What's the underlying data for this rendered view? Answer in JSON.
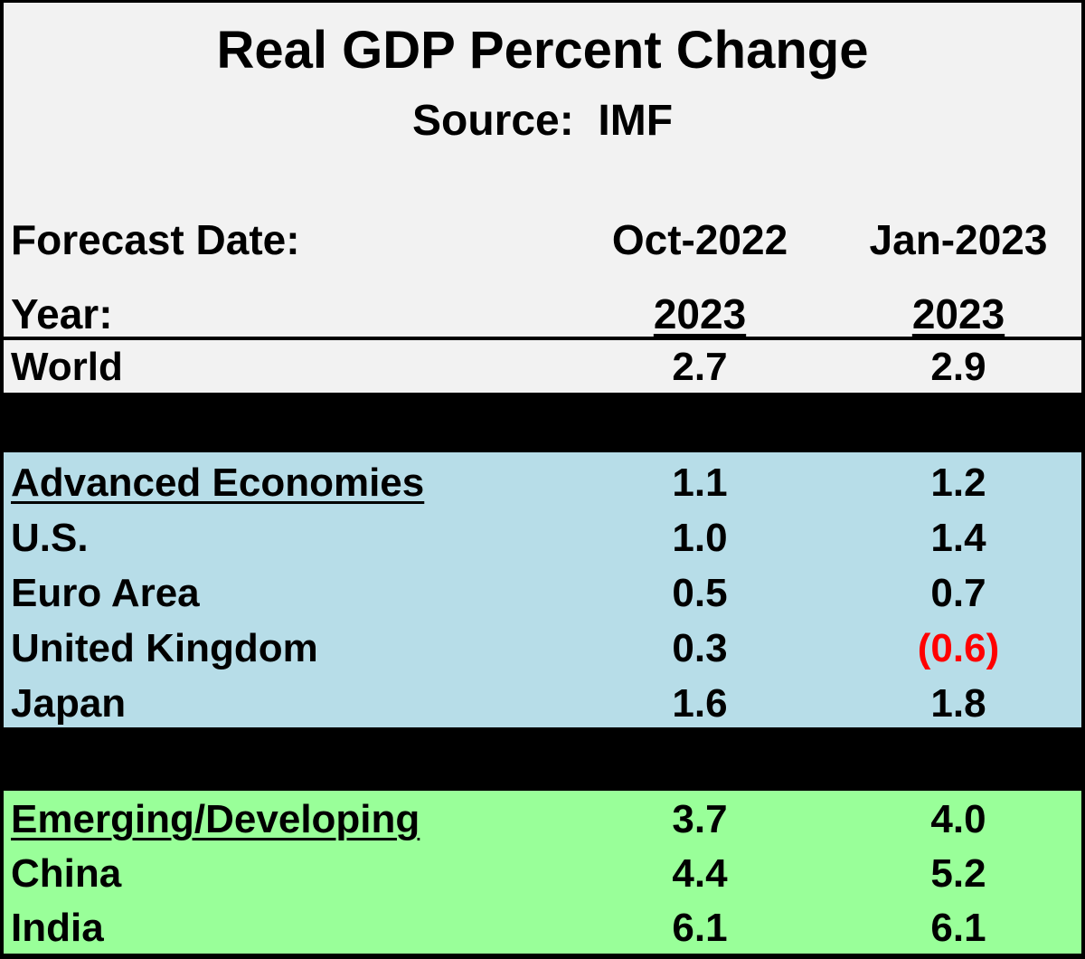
{
  "chart_data": {
    "type": "table",
    "title": "Real GDP Percent Change",
    "subtitle": "Source:  IMF",
    "header": {
      "forecast_label": "Forecast Date:",
      "year_label": "Year:",
      "forecast_dates": [
        "Oct-2022",
        "Jan-2023"
      ],
      "years": [
        "2023",
        "2023"
      ]
    },
    "groups": [
      {
        "rows": [
          {
            "label": "World",
            "values": [
              "2.7",
              "2.9"
            ],
            "numeric": [
              2.7,
              2.9
            ]
          }
        ]
      },
      {
        "rows": [
          {
            "label": "Advanced Economies",
            "values": [
              "1.1",
              "1.2"
            ],
            "numeric": [
              1.1,
              1.2
            ]
          },
          {
            "label": "U.S.",
            "values": [
              "1.0",
              "1.4"
            ],
            "numeric": [
              1.0,
              1.4
            ]
          },
          {
            "label": "Euro Area",
            "values": [
              "0.5",
              "0.7"
            ],
            "numeric": [
              0.5,
              0.7
            ]
          },
          {
            "label": "United Kingdom",
            "values": [
              "0.3",
              "(0.6)"
            ],
            "numeric": [
              0.3,
              -0.6
            ]
          },
          {
            "label": "Japan",
            "values": [
              "1.6",
              "1.8"
            ],
            "numeric": [
              1.6,
              1.8
            ]
          }
        ]
      },
      {
        "rows": [
          {
            "label": "Emerging/Developing",
            "values": [
              "3.7",
              "4.0"
            ],
            "numeric": [
              3.7,
              4.0
            ]
          },
          {
            "label": "China",
            "values": [
              "4.4",
              "5.2"
            ],
            "numeric": [
              4.4,
              5.2
            ]
          },
          {
            "label": "India",
            "values": [
              "6.1",
              "6.1"
            ],
            "numeric": [
              6.1,
              6.1
            ]
          }
        ]
      }
    ]
  },
  "colors": {
    "header_bg": "#f2f2f2",
    "advanced_bg": "#b7dde8",
    "emerging_bg": "#99ff99",
    "negative_text": "#ff0000",
    "separator": "#000000"
  }
}
